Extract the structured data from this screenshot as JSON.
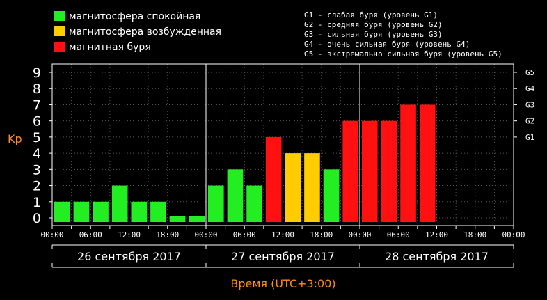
{
  "legend": {
    "items": [
      {
        "label": "магнитосфера спокойная",
        "color": "#22ee22"
      },
      {
        "label": "магнитосфера возбужденная",
        "color": "#ffcc00"
      },
      {
        "label": "магнитная буря",
        "color": "#ff1111"
      }
    ],
    "storm_levels": [
      "G1 - слабая буря (уровень G1)",
      "G2 - средняя буря (уровень G2)",
      "G3 - сильная буря (уровень G3)",
      "G4 - очень сильная буря (уровень G4)",
      "G5 - экстремально сильная буря (уровень G5)"
    ]
  },
  "colors": {
    "quiet": "#22ee22",
    "active": "#ffcc00",
    "storm": "#ff1111",
    "axis_label": "#ff8c1a",
    "axis": "#ffffff",
    "grid": "#555555"
  },
  "chart_data": {
    "type": "bar",
    "ylabel": "Kp",
    "xlabel": "Время (UTC+3:00)",
    "ylim": [
      0,
      9
    ],
    "yticks": [
      0,
      1,
      2,
      3,
      4,
      5,
      6,
      7,
      8,
      9
    ],
    "right_ticks": [
      {
        "label": "G1",
        "kp": 5
      },
      {
        "label": "G2",
        "kp": 6
      },
      {
        "label": "G3",
        "kp": 7
      },
      {
        "label": "G4",
        "kp": 8
      },
      {
        "label": "G5",
        "kp": 9
      }
    ],
    "time_tick_labels": [
      "00:00",
      "06:00",
      "12:00",
      "18:00",
      "00:00",
      "06:00",
      "12:00",
      "18:00",
      "00:00",
      "06:00",
      "12:00",
      "18:00",
      "00:00"
    ],
    "days": [
      "26 сентября 2017",
      "27 сентября 2017",
      "28 сентября 2017"
    ],
    "slots_per_day": 8,
    "grid": "dotted",
    "values": [
      1,
      1,
      1,
      2,
      1,
      1,
      0.1,
      0.1,
      2,
      3,
      2,
      5,
      4,
      4,
      3,
      6,
      6,
      6,
      7,
      7
    ],
    "levels": [
      "quiet",
      "quiet",
      "quiet",
      "quiet",
      "quiet",
      "quiet",
      "quiet",
      "quiet",
      "quiet",
      "quiet",
      "quiet",
      "storm",
      "active",
      "active",
      "quiet",
      "storm",
      "storm",
      "storm",
      "storm",
      "storm"
    ]
  }
}
